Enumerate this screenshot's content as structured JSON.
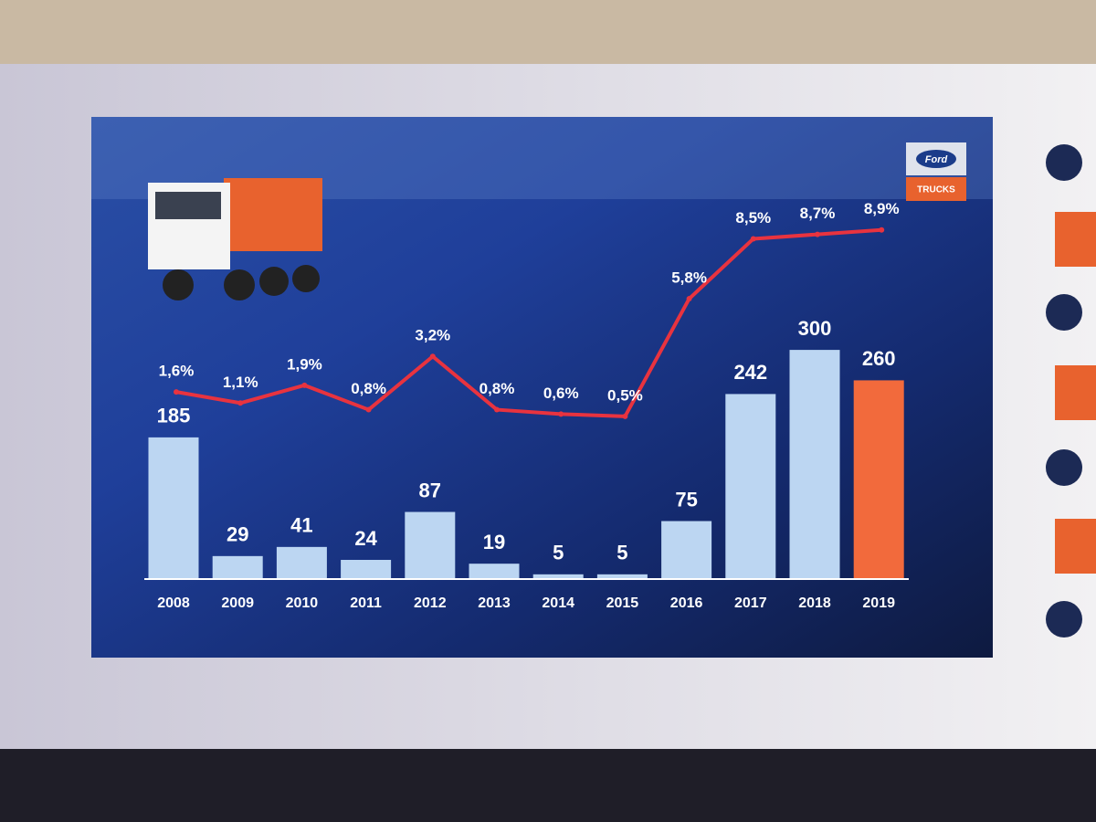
{
  "chart_data": {
    "type": "bar-line",
    "categories": [
      "2008",
      "2009",
      "2010",
      "2011",
      "2012",
      "2013",
      "2014",
      "2015",
      "2016",
      "2017",
      "2018",
      "2019"
    ],
    "bars": {
      "values": [
        185,
        29,
        41,
        24,
        87,
        19,
        5,
        5,
        75,
        242,
        300,
        260
      ],
      "colors": [
        "#bcd6f2",
        "#bcd6f2",
        "#bcd6f2",
        "#bcd6f2",
        "#bcd6f2",
        "#bcd6f2",
        "#bcd6f2",
        "#bcd6f2",
        "#bcd6f2",
        "#bcd6f2",
        "#bcd6f2",
        "#f26a3c"
      ]
    },
    "line": {
      "color": "#e8333f",
      "values": [
        1.6,
        1.1,
        1.9,
        0.8,
        3.2,
        0.8,
        0.6,
        0.5,
        5.8,
        8.5,
        8.7,
        8.9
      ],
      "value_labels": [
        "1,6%",
        "1,1%",
        "1,9%",
        "0,8%",
        "3,2%",
        "0,8%",
        "0,6%",
        "0,5%",
        "5,8%",
        "8,5%",
        "8,7%",
        "8,9%"
      ]
    },
    "logo": {
      "brand": "Ford",
      "label": "TRUCKS"
    }
  }
}
